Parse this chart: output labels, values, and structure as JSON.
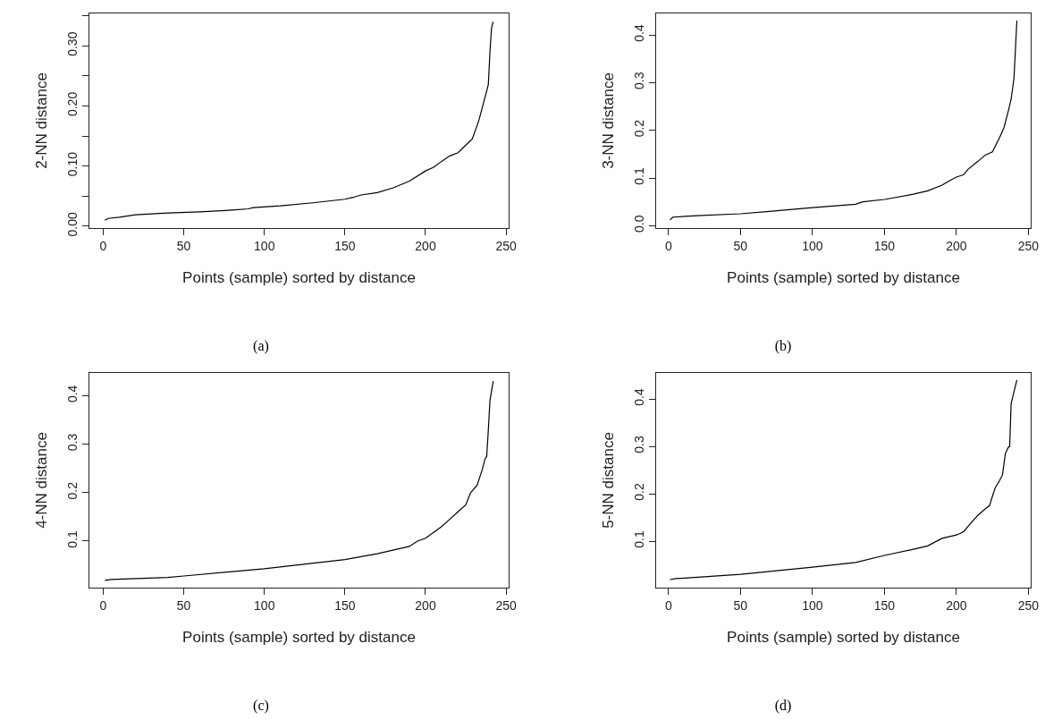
{
  "chart_data": [
    {
      "type": "line",
      "xlabel": "Points (sample) sorted by distance",
      "ylabel": "2-NN distance",
      "annotations": [
        "(a)"
      ],
      "grid": false,
      "color": "#000000",
      "x": [
        1,
        3,
        10,
        20,
        40,
        60,
        80,
        90,
        93,
        110,
        130,
        150,
        155,
        160,
        170,
        180,
        190,
        200,
        205,
        210,
        215,
        220,
        225,
        229,
        233,
        236,
        238,
        239,
        240,
        241,
        242
      ],
      "values": [
        0.01,
        0.013,
        0.015,
        0.019,
        0.022,
        0.024,
        0.027,
        0.029,
        0.031,
        0.034,
        0.039,
        0.045,
        0.048,
        0.052,
        0.056,
        0.064,
        0.075,
        0.092,
        0.098,
        0.108,
        0.117,
        0.122,
        0.135,
        0.145,
        0.175,
        0.205,
        0.225,
        0.236,
        0.29,
        0.33,
        0.34
      ],
      "xlim": [
        -8.6,
        251.6
      ],
      "xticks": [
        0,
        50,
        100,
        150,
        200,
        250
      ],
      "ylim": [
        -0.003,
        0.354
      ],
      "yticks": [
        {
          "value": 0,
          "label": "0.00"
        },
        {
          "value": 0.05,
          "label": null
        },
        {
          "value": 0.1,
          "label": "0.10"
        },
        {
          "value": 0.15,
          "label": null
        },
        {
          "value": 0.2,
          "label": "0.20"
        },
        {
          "value": 0.25,
          "label": null
        },
        {
          "value": 0.3,
          "label": "0.30"
        },
        {
          "value": 0.35,
          "label": null
        }
      ]
    },
    {
      "type": "line",
      "xlabel": "Points (sample) sorted by distance",
      "ylabel": "3-NN distance",
      "annotations": [
        "(b)"
      ],
      "grid": false,
      "color": "#000000",
      "x": [
        1,
        3,
        20,
        50,
        70,
        100,
        130,
        135,
        150,
        170,
        180,
        190,
        195,
        200,
        205,
        208,
        215,
        220,
        225,
        230,
        233,
        236,
        238,
        240,
        241,
        242
      ],
      "values": [
        0.012,
        0.018,
        0.021,
        0.025,
        0.03,
        0.038,
        0.045,
        0.05,
        0.055,
        0.066,
        0.073,
        0.085,
        0.094,
        0.102,
        0.107,
        0.118,
        0.135,
        0.148,
        0.155,
        0.185,
        0.205,
        0.24,
        0.265,
        0.31,
        0.37,
        0.43
      ],
      "xlim": [
        -8.6,
        251.6
      ],
      "xticks": [
        0,
        50,
        100,
        150,
        200,
        250
      ],
      "ylim": [
        -0.005,
        0.445
      ],
      "yticks": [
        {
          "value": 0,
          "label": "0.0"
        },
        0.1,
        0.2,
        0.3,
        0.4
      ]
    },
    {
      "type": "line",
      "xlabel": "Points (sample) sorted by distance",
      "ylabel": "4-NN distance",
      "annotations": [
        "(c)"
      ],
      "grid": false,
      "color": "#000000",
      "x": [
        1,
        5,
        40,
        50,
        100,
        150,
        170,
        190,
        195,
        200,
        205,
        210,
        215,
        220,
        225,
        228,
        232,
        235,
        237,
        238,
        239,
        240,
        242
      ],
      "values": [
        0.019,
        0.021,
        0.025,
        0.028,
        0.043,
        0.062,
        0.074,
        0.089,
        0.1,
        0.106,
        0.118,
        0.13,
        0.145,
        0.16,
        0.175,
        0.2,
        0.215,
        0.245,
        0.27,
        0.275,
        0.33,
        0.39,
        0.43
      ],
      "xlim": [
        -8.6,
        251.6
      ],
      "xticks": [
        0,
        50,
        100,
        150,
        200,
        250
      ],
      "ylim": [
        0.004,
        0.447
      ],
      "yticks": [
        0.1,
        0.2,
        0.3,
        0.4
      ]
    },
    {
      "type": "line",
      "xlabel": "Points (sample) sorted by distance",
      "ylabel": "5-NN distance",
      "annotations": [
        "(d)"
      ],
      "grid": false,
      "color": "#000000",
      "x": [
        1,
        5,
        50,
        100,
        130,
        150,
        170,
        180,
        190,
        200,
        205,
        210,
        215,
        220,
        223,
        225,
        227,
        230,
        232,
        234,
        236,
        237,
        238,
        240,
        242
      ],
      "values": [
        0.019,
        0.021,
        0.03,
        0.045,
        0.055,
        0.07,
        0.083,
        0.09,
        0.106,
        0.113,
        0.12,
        0.138,
        0.155,
        0.168,
        0.175,
        0.195,
        0.213,
        0.228,
        0.24,
        0.285,
        0.298,
        0.3,
        0.39,
        0.415,
        0.44
      ],
      "xlim": [
        -8.6,
        251.6
      ],
      "xticks": [
        0,
        50,
        100,
        150,
        200,
        250
      ],
      "ylim": [
        0.002,
        0.455
      ],
      "yticks": [
        0.1,
        0.2,
        0.3,
        0.4
      ]
    }
  ]
}
